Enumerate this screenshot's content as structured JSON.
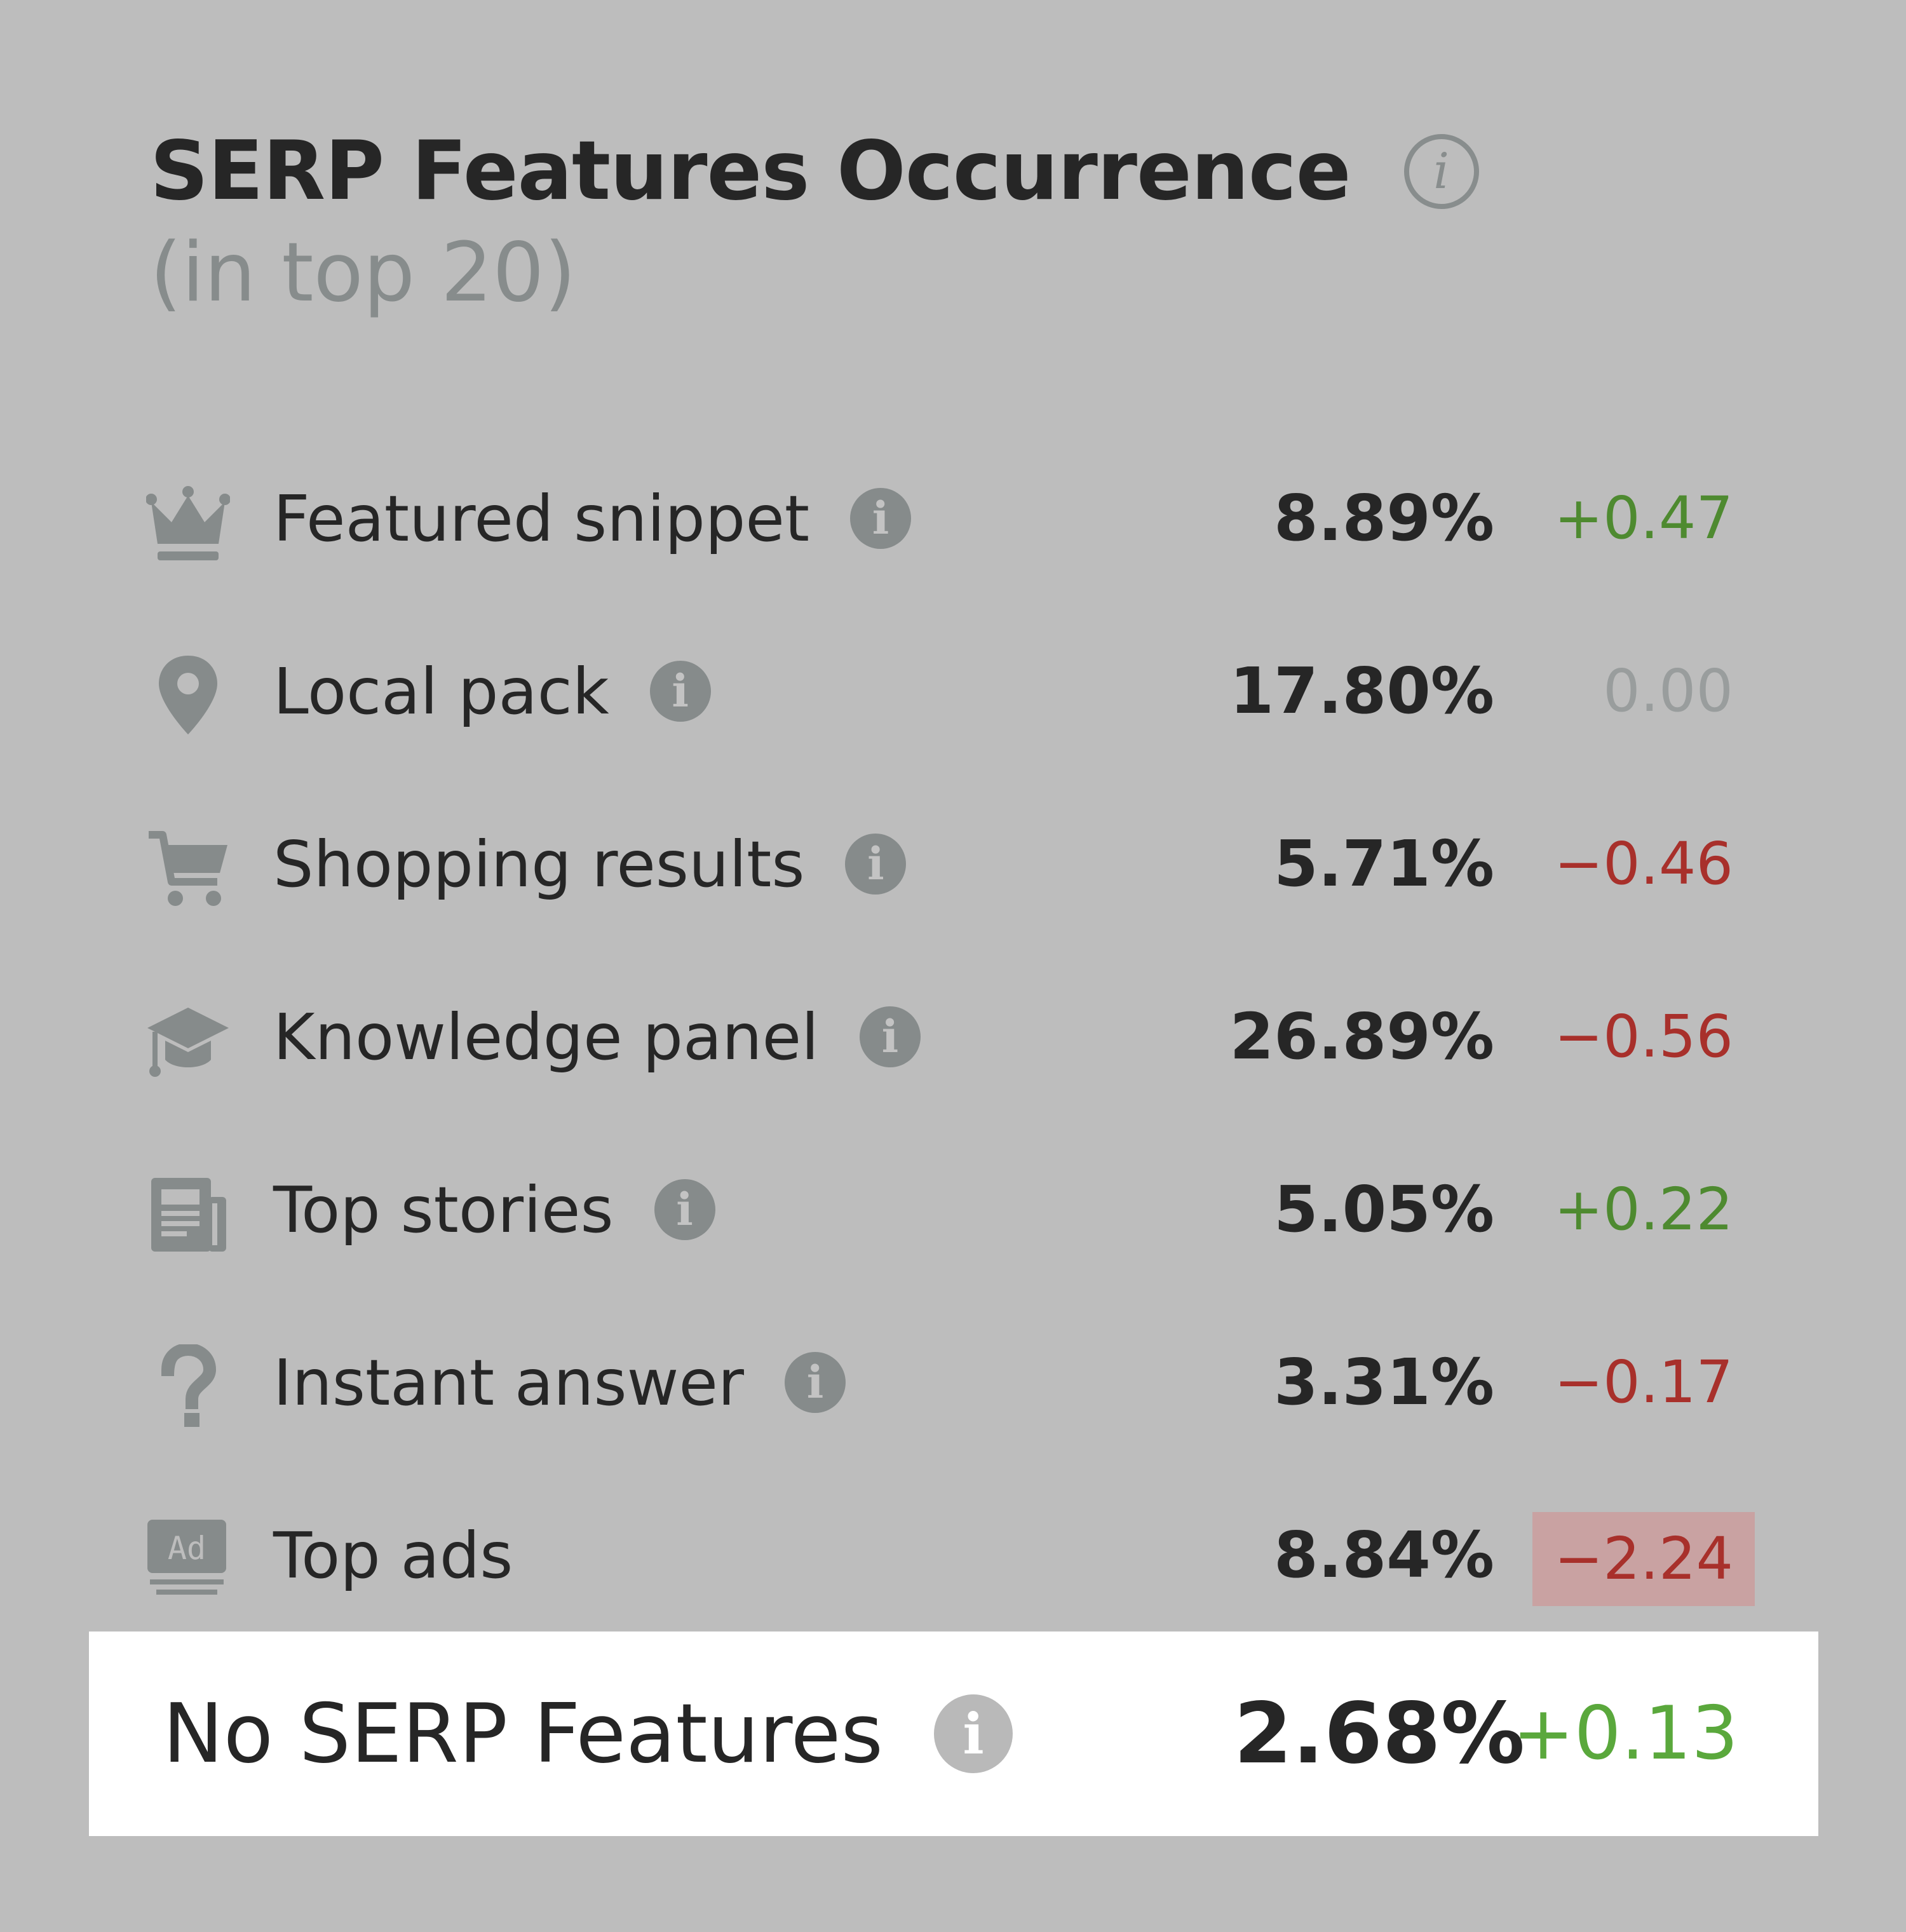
{
  "header": {
    "title": "SERP Features Occurrence",
    "subtitle": "(in top 20)",
    "info_glyph": "i"
  },
  "colors": {
    "background": "#bdbdbd",
    "positive": "#4e8a30",
    "negative": "#a8302b",
    "neutral": "#999d9d",
    "highlight": "#c9a2a2",
    "icon": "#868b8b"
  },
  "features": [
    {
      "icon": "crown-icon",
      "label": "Featured snippet",
      "info": "i",
      "percent": "8.89%",
      "change": "+0.47",
      "trend": "pos"
    },
    {
      "icon": "map-pin-icon",
      "label": "Local pack",
      "info": "i",
      "percent": "17.80%",
      "change": "0.00",
      "trend": "zero"
    },
    {
      "icon": "shopping-cart-icon",
      "label": "Shopping results",
      "info": "i",
      "percent": "5.71%",
      "change": "−0.46",
      "trend": "neg"
    },
    {
      "icon": "graduation-cap-icon",
      "label": "Knowledge panel",
      "info": "i",
      "percent": "26.89%",
      "change": "−0.56",
      "trend": "neg"
    },
    {
      "icon": "newspaper-icon",
      "label": "Top stories",
      "info": "i",
      "percent": "5.05%",
      "change": "+0.22",
      "trend": "pos"
    },
    {
      "icon": "question-mark-icon",
      "label": "Instant answer",
      "info": "i",
      "percent": "3.31%",
      "change": "−0.17",
      "trend": "neg"
    },
    {
      "icon": "ad-icon",
      "label": "Top ads",
      "ad_text": "Ad",
      "percent": "8.84%",
      "change": "−2.24",
      "trend": "neg",
      "highlighted": true
    }
  ],
  "summary": {
    "label": "No SERP Features",
    "info": "i",
    "percent": "2.68%",
    "change": "+0.13",
    "trend": "pos"
  }
}
